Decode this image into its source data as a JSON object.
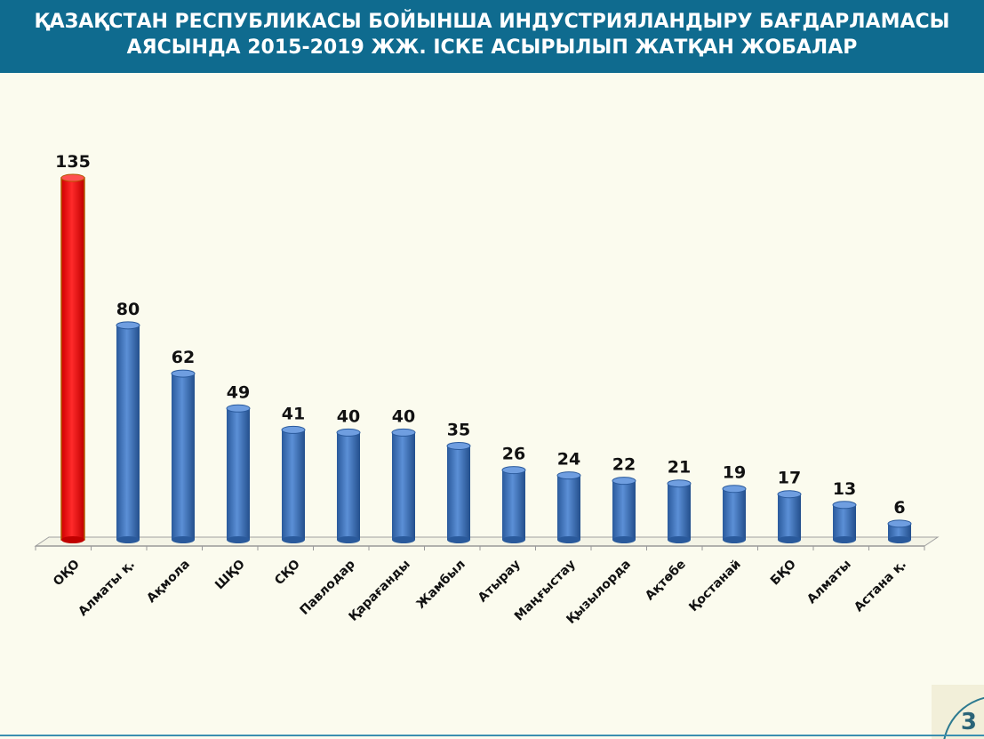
{
  "header": {
    "title_line1": "ҚАЗАҚСТАН РЕСПУБЛИКАСЫ БОЙЫНША ИНДУСТРИЯЛАНДЫРУ БАҒДАРЛАМАСЫ",
    "title_line2": "АЯСЫНДА 2015-2019 ЖЖ.  ІСКЕ АСЫРЫЛЫП ЖАТҚАН ЖОБАЛАР"
  },
  "page_number": "3",
  "chart_data": {
    "type": "bar",
    "title": "ҚАЗАҚСТАН РЕСПУБЛИКАСЫ БОЙЫНША ИНДУСТРИЯЛАНДЫРУ БАҒДАРЛАМАСЫ АЯСЫНДА 2015-2019 ЖЖ.  ІСКЕ АСЫРЫЛЫП ЖАТҚАН ЖОБАЛАР",
    "categories": [
      "ОҚО",
      "Алматы қ.",
      "Ақмола",
      "ШҚО",
      "СҚО",
      "Павлодар",
      "Қарағанды",
      "Жамбыл",
      "Атырау",
      "Маңғыстау",
      "Қызылорда",
      "Ақтөбе",
      "Қостанай",
      "БҚО",
      "Алматы",
      "Астана қ."
    ],
    "values": [
      135,
      80,
      62,
      49,
      41,
      40,
      40,
      35,
      26,
      24,
      22,
      21,
      19,
      17,
      13,
      6
    ],
    "highlight_index": 0,
    "colors": {
      "highlight": "#ff0000",
      "default": "#3f72b8"
    },
    "xlabel": "",
    "ylabel": "",
    "ylim": [
      0,
      135
    ],
    "grid": false,
    "legend": "none"
  }
}
